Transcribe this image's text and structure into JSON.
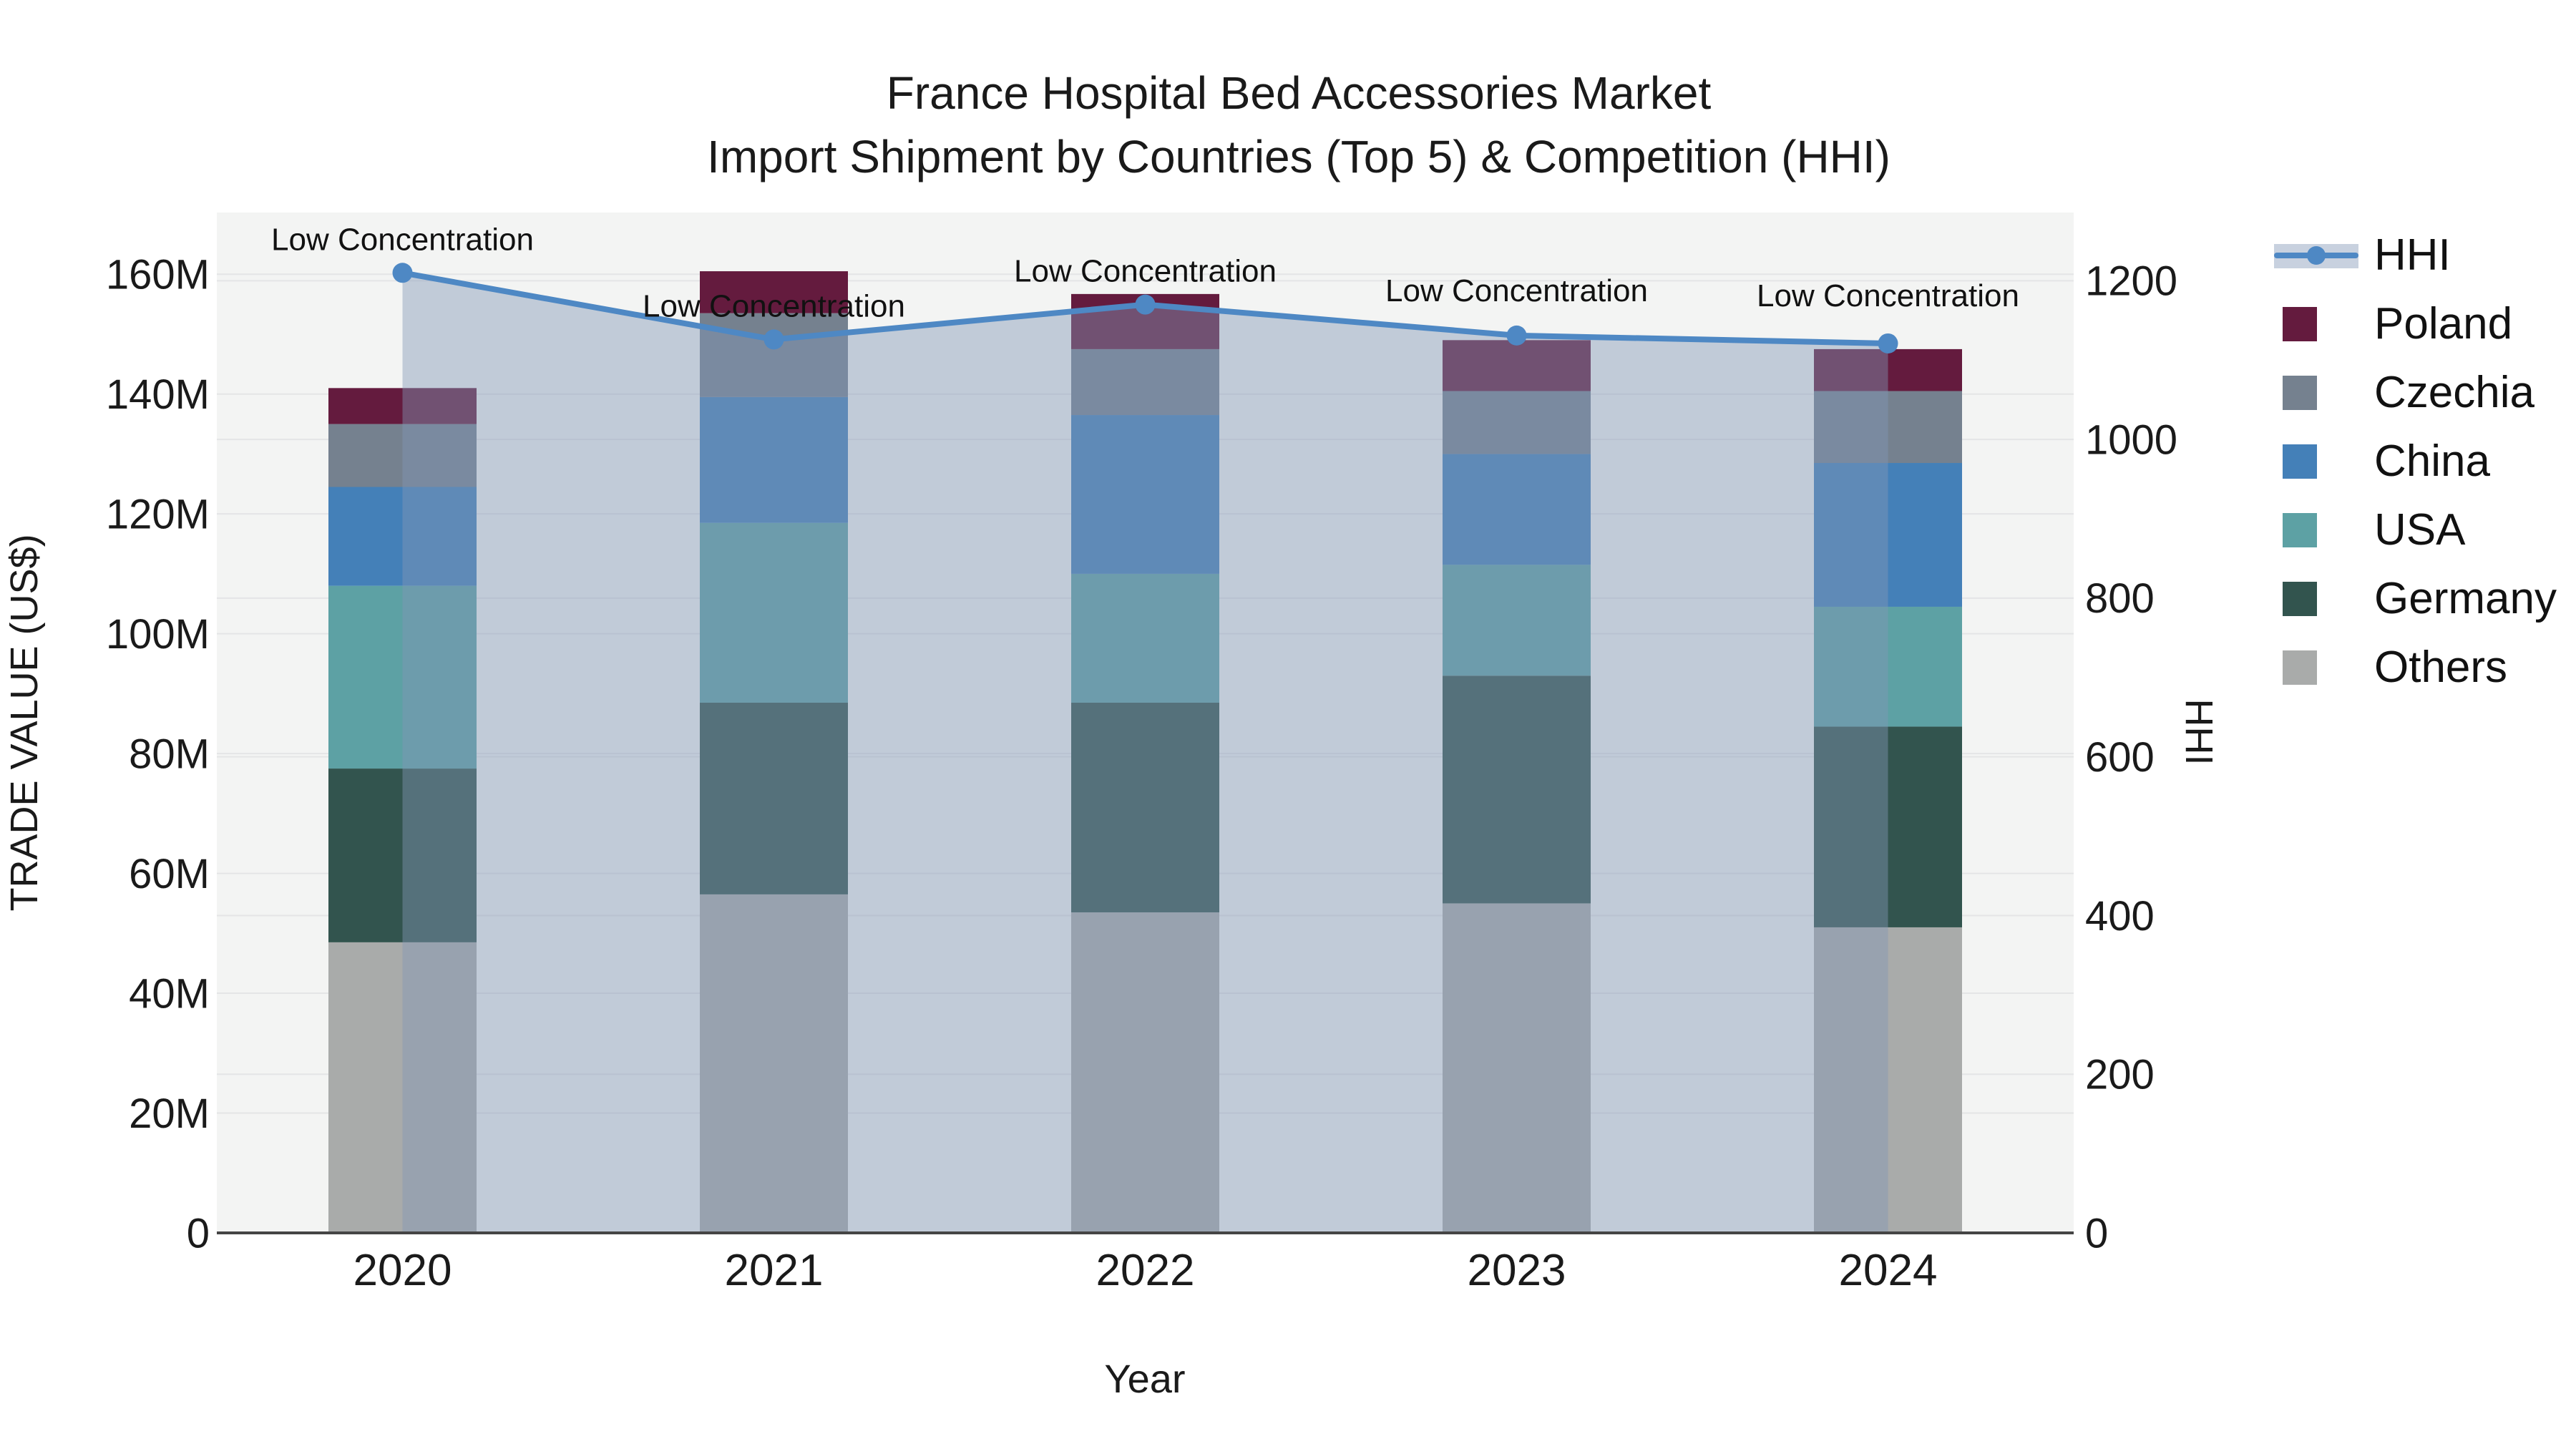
{
  "title": {
    "line1": "France Hospital Bed Accessories Market",
    "line2": "Import Shipment by Countries (Top 5) & Competition (HHI)"
  },
  "chart_data": {
    "type": "bar+line",
    "title": "France Hospital Bed Accessories Market Import Shipment by Countries (Top 5) & Competition (HHI)",
    "categories": [
      "2020",
      "2021",
      "2022",
      "2023",
      "2024"
    ],
    "xlabel": "Year",
    "ylabel": "TRADE VALUE (US$)",
    "y2label": "HHI",
    "units": "M US$",
    "grid": true,
    "legend_position": "right",
    "ylim": [
      0,
      170.3
    ],
    "y2lim": [
      0,
      1286
    ],
    "stack_order_bottom_to_top": [
      "Others",
      "Germany",
      "USA",
      "China",
      "Czechia",
      "Poland"
    ],
    "series": [
      {
        "name": "Others",
        "color": "#A9ABAA",
        "values_musd": [
          48.5,
          56.5,
          53.5,
          55.0,
          51.0
        ]
      },
      {
        "name": "Germany",
        "color": "#32544E",
        "values_musd": [
          29.0,
          32.0,
          35.0,
          38.0,
          33.5
        ]
      },
      {
        "name": "USA",
        "color": "#5DA1A4",
        "values_musd": [
          30.5,
          30.0,
          21.5,
          18.5,
          20.0
        ]
      },
      {
        "name": "China",
        "color": "#4480B8",
        "values_musd": [
          16.5,
          21.0,
          26.5,
          18.5,
          24.0
        ]
      },
      {
        "name": "Czechia",
        "color": "#75818F",
        "values_musd": [
          10.5,
          14.0,
          11.0,
          10.5,
          12.0
        ]
      },
      {
        "name": "Poland",
        "color": "#641B3E",
        "values_musd": [
          6.0,
          7.0,
          9.2,
          8.5,
          7.0
        ]
      }
    ],
    "line_series": {
      "name": "HHI",
      "axis": "right",
      "color": "#4E88C4",
      "fill_color": "rgba(130,150,182,0.44)",
      "values": [
        1210,
        1126,
        1170,
        1131,
        1121
      ]
    },
    "annotations": [
      {
        "text": "Low Concentration",
        "category": "2020"
      },
      {
        "text": "Low Concentration",
        "category": "2021"
      },
      {
        "text": "Low Concentration",
        "category": "2022"
      },
      {
        "text": "Low Concentration",
        "category": "2023"
      },
      {
        "text": "Low Concentration",
        "category": "2024"
      }
    ],
    "left_axis_ticks": [
      "0",
      "20M",
      "40M",
      "60M",
      "80M",
      "100M",
      "120M",
      "140M",
      "160M"
    ],
    "left_axis_tick_values_m": [
      0,
      20,
      40,
      60,
      80,
      100,
      120,
      140,
      160
    ],
    "right_axis_ticks": [
      "0",
      "200",
      "400",
      "600",
      "800",
      "1000",
      "1200"
    ],
    "right_axis_tick_values": [
      0,
      200,
      400,
      600,
      800,
      1000,
      1200
    ]
  },
  "legend": {
    "items": [
      {
        "label": "HHI",
        "type": "line",
        "color": "#4E88C4"
      },
      {
        "label": "Poland",
        "type": "box",
        "color": "#641B3E"
      },
      {
        "label": "Czechia",
        "type": "box",
        "color": "#75818F"
      },
      {
        "label": "China",
        "type": "box",
        "color": "#4480B8"
      },
      {
        "label": "USA",
        "type": "box",
        "color": "#5DA1A4"
      },
      {
        "label": "Germany",
        "type": "box",
        "color": "#32544E"
      },
      {
        "label": "Others",
        "type": "box",
        "color": "#A9ABAA"
      }
    ]
  },
  "colors": {
    "plot_bg": "#F3F4F3",
    "grid": "#E4E5E6",
    "axis_line": "#454545",
    "text": "#1A1A1A",
    "hhi_line": "#4E88C4",
    "hhi_fill": "rgba(130,150,182,0.44)"
  }
}
